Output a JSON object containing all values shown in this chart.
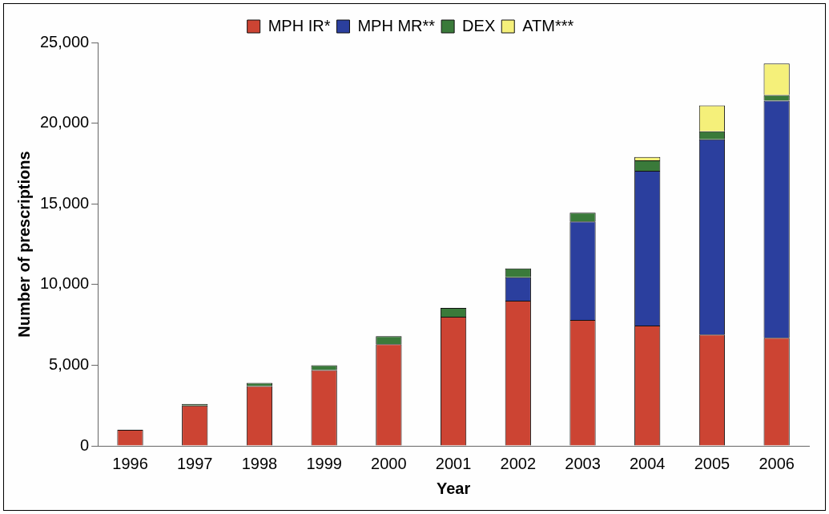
{
  "chart_data": {
    "type": "bar",
    "stacked": true,
    "xlabel": "Year",
    "ylabel": "Number of prescriptions",
    "categories": [
      "1996",
      "1997",
      "1998",
      "1999",
      "2000",
      "2001",
      "2002",
      "2003",
      "2004",
      "2005",
      "2006"
    ],
    "series": [
      {
        "name": "MPH IR*",
        "color": "#cc4433",
        "values": [
          1000,
          2500,
          3700,
          4700,
          6300,
          8000,
          9000,
          7800,
          7450,
          6900,
          6700
        ]
      },
      {
        "name": "MPH MR**",
        "color": "#2b3f9e",
        "values": [
          0,
          0,
          0,
          0,
          0,
          0,
          1450,
          6100,
          9600,
          12100,
          14700
        ]
      },
      {
        "name": "DEX",
        "color": "#3a7a3a",
        "values": [
          0,
          100,
          200,
          300,
          500,
          550,
          550,
          550,
          650,
          500,
          350
        ]
      },
      {
        "name": "ATM***",
        "color": "#f5f07a",
        "values": [
          0,
          0,
          0,
          0,
          0,
          0,
          0,
          0,
          200,
          1600,
          1950
        ]
      }
    ],
    "ylim": [
      0,
      25000
    ],
    "yticks": [
      {
        "value": 0,
        "label": "0"
      },
      {
        "value": 5000,
        "label": "5,000"
      },
      {
        "value": 10000,
        "label": "10,000"
      },
      {
        "value": 15000,
        "label": "15,000"
      },
      {
        "value": 20000,
        "label": "20,000"
      },
      {
        "value": 25000,
        "label": "25,000"
      }
    ],
    "grid": false,
    "legend": "top"
  }
}
